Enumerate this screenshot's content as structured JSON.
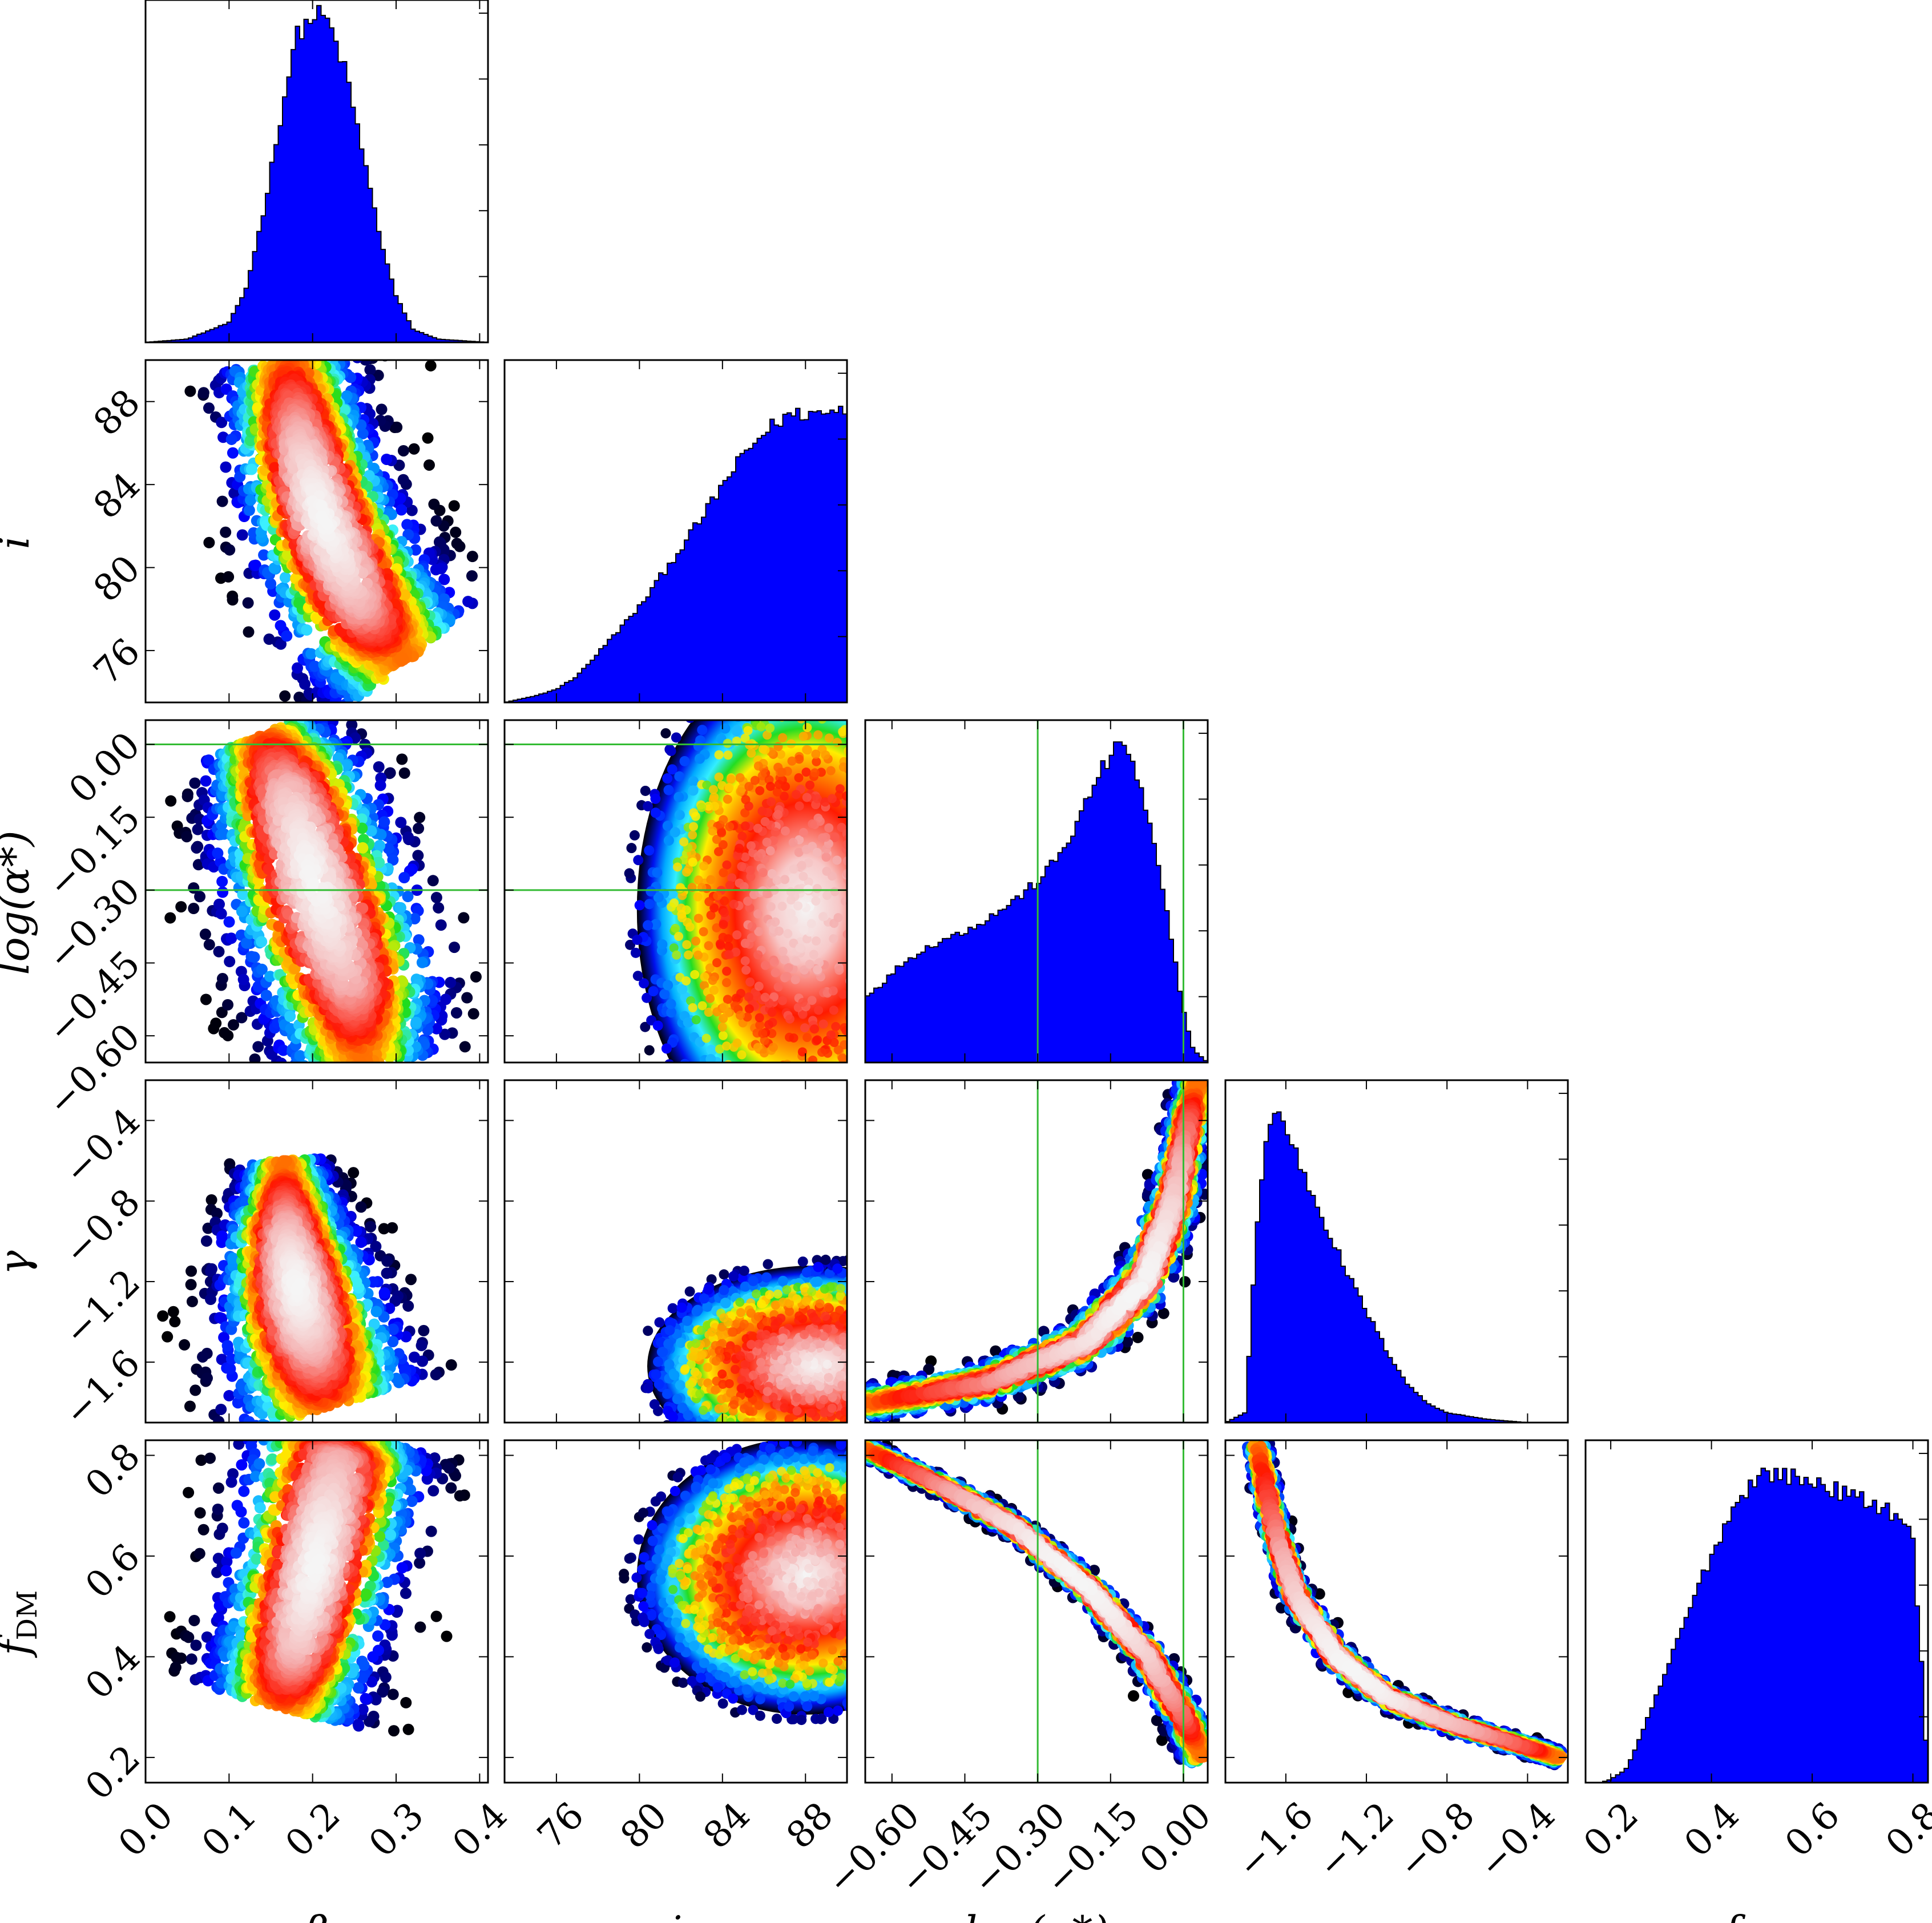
{
  "chart_data": {
    "type": "corner",
    "parameters": [
      {
        "key": "beta",
        "label": "β",
        "range": [
          0.0,
          0.41
        ],
        "ticks": [
          0.0,
          0.1,
          0.2,
          0.3,
          0.4
        ],
        "tick_labels": [
          "0.0",
          "0.1",
          "0.2",
          "0.3",
          "0.4"
        ]
      },
      {
        "key": "i",
        "label": "i",
        "range": [
          73.5,
          90.0
        ],
        "ticks": [
          76,
          80,
          84,
          88
        ],
        "tick_labels": [
          "76",
          "80",
          "84",
          "88"
        ]
      },
      {
        "key": "log_alpha",
        "label": "log(α*)",
        "range": [
          -0.655,
          0.05
        ],
        "ticks": [
          -0.6,
          -0.45,
          -0.3,
          -0.15,
          0.0
        ],
        "tick_labels": [
          "−0.60",
          "−0.45",
          "−0.30",
          "−0.15",
          "0.00"
        ]
      },
      {
        "key": "gamma",
        "label": "γ",
        "range": [
          -1.9,
          -0.2
        ],
        "ticks": [
          -1.6,
          -1.2,
          -0.8,
          -0.4
        ],
        "tick_labels": [
          "−1.6",
          "−1.2",
          "−0.8",
          "−0.4"
        ]
      },
      {
        "key": "f_DM",
        "label": "f_DM",
        "label_main": "f",
        "label_sub": "DM",
        "range": [
          0.15,
          0.83
        ],
        "ticks": [
          0.2,
          0.4,
          0.6,
          0.8
        ],
        "tick_labels": [
          "0.2",
          "0.4",
          "0.6",
          "0.8"
        ]
      }
    ],
    "marginals": [
      {
        "param": "beta",
        "x": [
          0.0,
          0.05,
          0.1,
          0.12,
          0.14,
          0.16,
          0.18,
          0.2,
          0.21,
          0.22,
          0.24,
          0.26,
          0.28,
          0.3,
          0.32,
          0.35,
          0.41
        ],
        "density": [
          0.0,
          0.01,
          0.06,
          0.16,
          0.38,
          0.66,
          0.93,
          0.99,
          1.0,
          0.97,
          0.82,
          0.58,
          0.33,
          0.14,
          0.04,
          0.01,
          0.0
        ]
      },
      {
        "param": "i",
        "x": [
          73.5,
          75.0,
          76.0,
          77.0,
          78.0,
          79.0,
          80.0,
          81.0,
          82.0,
          83.0,
          84.0,
          85.0,
          86.0,
          87.0,
          88.0,
          89.0,
          90.0
        ],
        "density": [
          0.0,
          0.02,
          0.04,
          0.08,
          0.15,
          0.22,
          0.29,
          0.38,
          0.47,
          0.56,
          0.66,
          0.75,
          0.82,
          0.87,
          0.88,
          0.88,
          0.9
        ]
      },
      {
        "param": "log_alpha",
        "x": [
          -0.655,
          -0.62,
          -0.58,
          -0.54,
          -0.5,
          -0.45,
          -0.4,
          -0.35,
          -0.3,
          -0.26,
          -0.22,
          -0.18,
          -0.15,
          -0.12,
          -0.09,
          -0.06,
          -0.03,
          0.0,
          0.02,
          0.05
        ],
        "density": [
          0.2,
          0.24,
          0.3,
          0.34,
          0.37,
          0.4,
          0.44,
          0.49,
          0.55,
          0.62,
          0.72,
          0.86,
          0.93,
          0.98,
          0.84,
          0.66,
          0.42,
          0.16,
          0.04,
          0.0
        ]
      },
      {
        "param": "gamma",
        "x": [
          -1.9,
          -1.8,
          -1.75,
          -1.7,
          -1.65,
          -1.6,
          -1.55,
          -1.5,
          -1.4,
          -1.3,
          -1.2,
          -1.1,
          -1.0,
          -0.9,
          -0.8,
          -0.7,
          -0.6,
          -0.4,
          -0.2
        ],
        "density": [
          0.0,
          0.03,
          0.55,
          0.86,
          0.95,
          0.9,
          0.82,
          0.74,
          0.6,
          0.46,
          0.34,
          0.22,
          0.12,
          0.06,
          0.03,
          0.02,
          0.01,
          0.0,
          0.0
        ]
      },
      {
        "param": "f_DM",
        "x": [
          0.15,
          0.18,
          0.2,
          0.23,
          0.26,
          0.3,
          0.34,
          0.38,
          0.42,
          0.46,
          0.5,
          0.54,
          0.58,
          0.62,
          0.66,
          0.7,
          0.74,
          0.78,
          0.8,
          0.82,
          0.83
        ],
        "density": [
          0.0,
          0.0,
          0.01,
          0.04,
          0.14,
          0.3,
          0.46,
          0.62,
          0.76,
          0.88,
          0.94,
          0.94,
          0.92,
          0.91,
          0.88,
          0.86,
          0.84,
          0.8,
          0.74,
          0.3,
          0.0
        ]
      }
    ],
    "pairs": [
      {
        "x": "beta",
        "y": "i",
        "shape": "curved",
        "path": [
          [
            0.17,
            90.0
          ],
          [
            0.185,
            86.0
          ],
          [
            0.215,
            82.0
          ],
          [
            0.26,
            78.0
          ],
          [
            0.31,
            75.5
          ]
        ],
        "width": [
          0.085,
          0.085,
          0.09,
          0.1,
          0.11
        ]
      },
      {
        "x": "beta",
        "y": "log_alpha",
        "shape": "curved",
        "path": [
          [
            0.14,
            0.02
          ],
          [
            0.17,
            -0.1
          ],
          [
            0.205,
            -0.3
          ],
          [
            0.245,
            -0.5
          ],
          [
            0.26,
            -0.66
          ]
        ],
        "width": [
          0.08,
          0.1,
          0.11,
          0.11,
          0.1
        ]
      },
      {
        "x": "i",
        "y": "log_alpha",
        "shape": "blob",
        "center": [
          88.0,
          -0.34
        ],
        "sd": [
          6.5,
          0.42
        ],
        "rho": 0.0
      },
      {
        "x": "beta",
        "y": "gamma",
        "shape": "triangle",
        "path": [
          [
            0.22,
            -1.82
          ],
          [
            0.19,
            -1.4
          ],
          [
            0.17,
            -1.0
          ],
          [
            0.165,
            -0.6
          ]
        ],
        "width": [
          0.12,
          0.1,
          0.08,
          0.05
        ]
      },
      {
        "x": "i",
        "y": "gamma",
        "shape": "blob",
        "center": [
          88.5,
          -1.62
        ],
        "sd": [
          6.5,
          0.4
        ],
        "rho": 0.0
      },
      {
        "x": "log_alpha",
        "y": "gamma",
        "shape": "curved",
        "path": [
          [
            -0.66,
            -1.81
          ],
          [
            -0.4,
            -1.7
          ],
          [
            -0.2,
            -1.5
          ],
          [
            -0.08,
            -1.2
          ],
          [
            -0.02,
            -0.8
          ],
          [
            0.01,
            -0.4
          ],
          [
            0.03,
            -0.2
          ]
        ],
        "width": [
          0.035,
          0.04,
          0.045,
          0.05,
          0.045,
          0.04,
          0.04
        ]
      },
      {
        "x": "beta",
        "y": "f_DM",
        "shape": "curved",
        "path": [
          [
            0.16,
            0.3
          ],
          [
            0.18,
            0.42
          ],
          [
            0.205,
            0.6
          ],
          [
            0.23,
            0.8
          ],
          [
            0.235,
            0.84
          ]
        ],
        "width": [
          0.1,
          0.095,
          0.1,
          0.11,
          0.11
        ]
      },
      {
        "x": "i",
        "y": "f_DM",
        "shape": "blob",
        "center": [
          88.0,
          0.56
        ],
        "sd": [
          6.5,
          0.22
        ],
        "rho": 0.0
      },
      {
        "x": "log_alpha",
        "y": "f_DM",
        "shape": "curved",
        "path": [
          [
            -0.66,
            0.815
          ],
          [
            -0.5,
            0.74
          ],
          [
            -0.35,
            0.66
          ],
          [
            -0.2,
            0.54
          ],
          [
            -0.08,
            0.41
          ],
          [
            0.0,
            0.28
          ],
          [
            0.04,
            0.2
          ]
        ],
        "width": [
          0.018,
          0.02,
          0.022,
          0.025,
          0.03,
          0.035,
          0.04
        ]
      },
      {
        "x": "gamma",
        "y": "f_DM",
        "shape": "curved",
        "path": [
          [
            -1.74,
            0.82
          ],
          [
            -1.66,
            0.66
          ],
          [
            -1.55,
            0.52
          ],
          [
            -1.35,
            0.4
          ],
          [
            -1.1,
            0.32
          ],
          [
            -0.8,
            0.27
          ],
          [
            -0.4,
            0.22
          ],
          [
            -0.25,
            0.2
          ]
        ],
        "width": [
          0.05,
          0.055,
          0.06,
          0.06,
          0.05,
          0.045,
          0.04,
          0.04
        ]
      }
    ],
    "reference_lines": {
      "param": "log_alpha",
      "values": [
        -0.3,
        0.0
      ],
      "color": "#33bb33"
    },
    "colors": {
      "marginal_fill": "#0000ff",
      "outlier_points": "#000000",
      "density_colormap": [
        "#000000",
        "#0000ff",
        "#00aaff",
        "#00ffff",
        "#00ff00",
        "#ffff00",
        "#ff8800",
        "#ff0000",
        "#ffffff"
      ]
    }
  }
}
